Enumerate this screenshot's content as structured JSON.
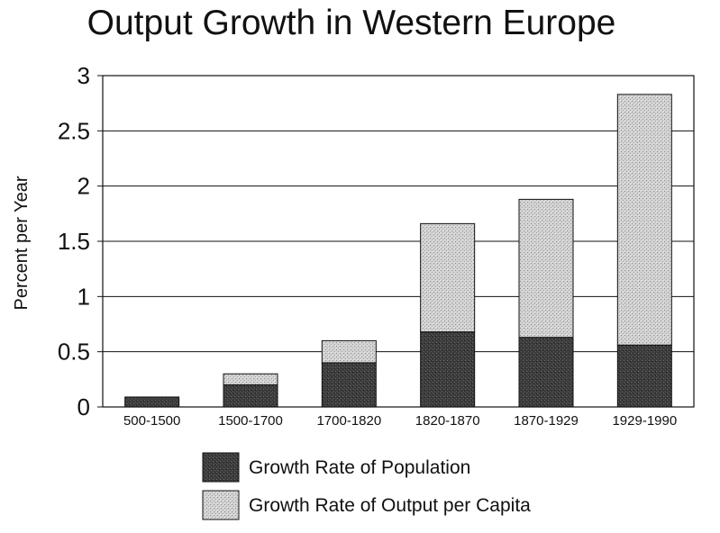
{
  "chart_data": {
    "type": "bar",
    "stacked": true,
    "title": "Output Growth in Western Europe",
    "xlabel": "",
    "ylabel": "Percent per Year",
    "ylim": [
      0,
      3
    ],
    "yticks": [
      "0",
      "0.5",
      "1",
      "1.5",
      "2",
      "2.5",
      "3"
    ],
    "grid": true,
    "legend_position": "bottom",
    "categories": [
      "500-1500",
      "1500-1700",
      "1700-1820",
      "1820-1870",
      "1870-1929",
      "1929-1990"
    ],
    "series": [
      {
        "name": "Growth Rate of Population",
        "values": [
          0.09,
          0.2,
          0.4,
          0.68,
          0.63,
          0.56
        ],
        "color": "#4a4a4a"
      },
      {
        "name": "Growth Rate of Output per Capita",
        "values": [
          0.0,
          0.1,
          0.2,
          0.98,
          1.25,
          2.27
        ],
        "color": "#c8c8c8"
      }
    ]
  }
}
